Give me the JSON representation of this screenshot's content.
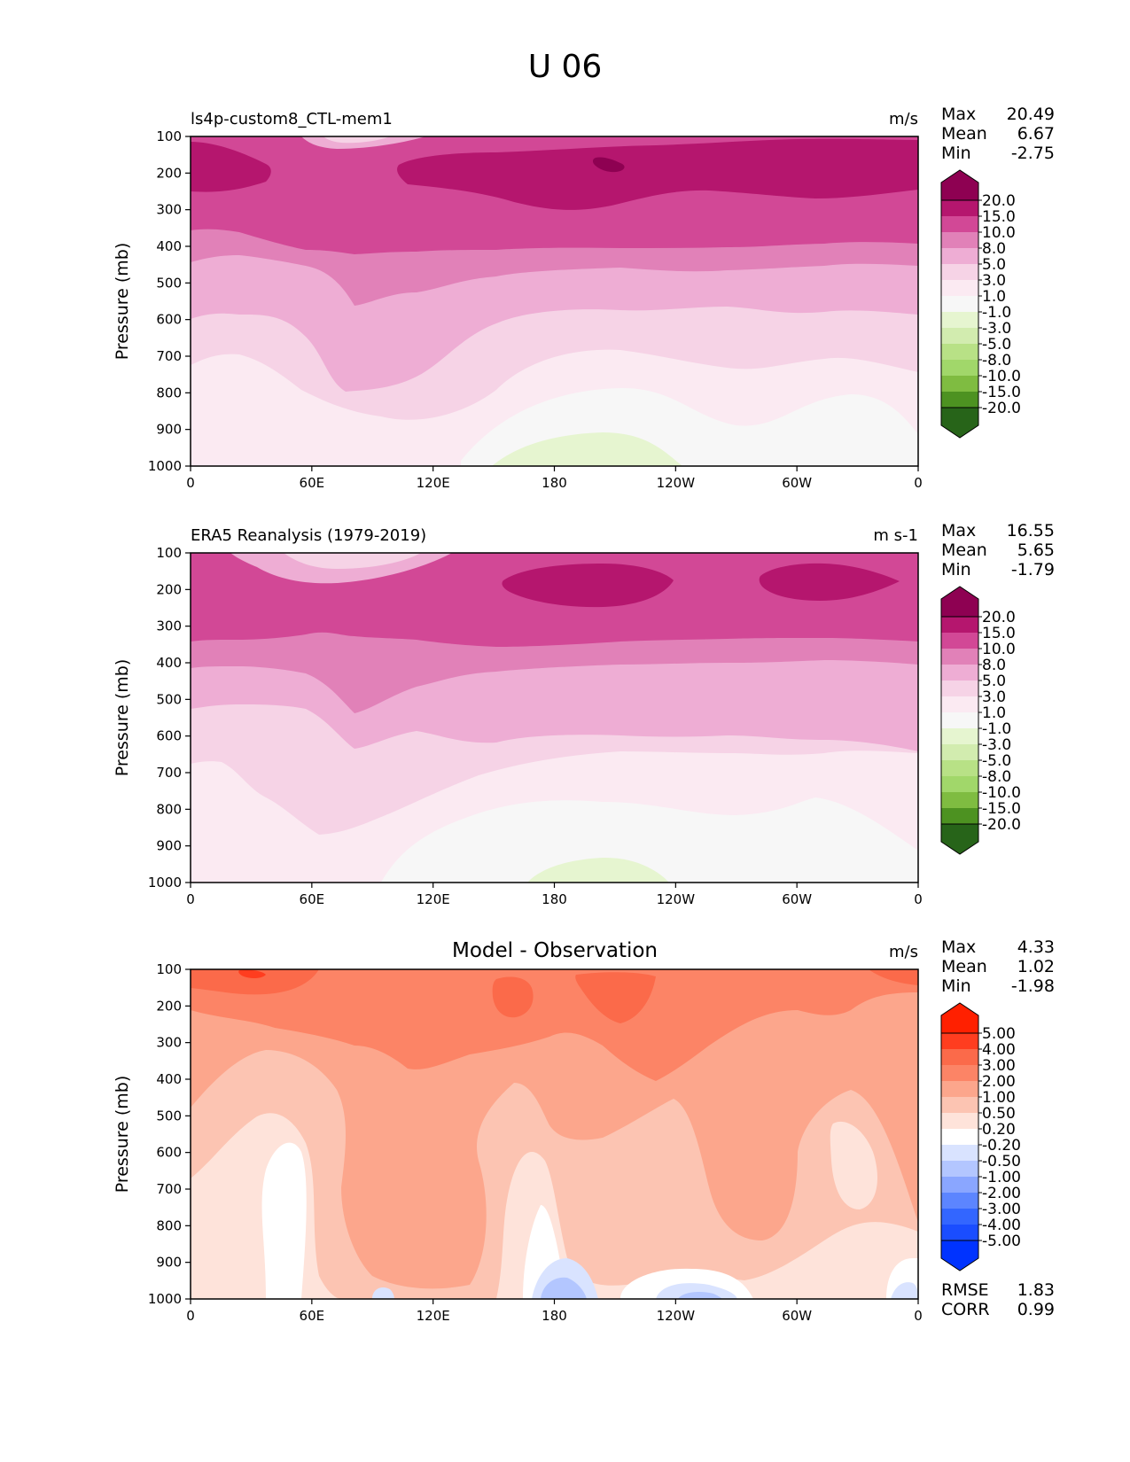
{
  "page": {
    "title": "U 06"
  },
  "colors": {
    "wind": [
      "#276419",
      "#4d9221",
      "#7fbc41",
      "#a1d76a",
      "#b8e186",
      "#d2ecaf",
      "#e6f5d0",
      "#f7f7f7",
      "#fbeaf2",
      "#f6d3e6",
      "#eeadd4",
      "#e181b8",
      "#d24896",
      "#b5166e",
      "#8e0152"
    ],
    "diff": [
      "#0033ff",
      "#1a4dff",
      "#3366ff",
      "#5c85ff",
      "#8aa6ff",
      "#b3c6ff",
      "#d9e3ff",
      "#ffffff",
      "#fee3da",
      "#fcc4b2",
      "#fca68c",
      "#fc8466",
      "#fb6a4a",
      "#ff3d1f",
      "#ff2000"
    ]
  },
  "panels": [
    {
      "id": "model",
      "left_title": "ls4p-custom8_CTL-mem1",
      "center_title": "",
      "units": "m/s",
      "stats": {
        "max_label": "Max",
        "max": "20.49",
        "mean_label": "Mean",
        "mean": "6.67",
        "min_label": "Min",
        "min": "-2.75"
      },
      "colorbar_labels": [
        "20.0",
        "15.0",
        "10.0",
        "8.0",
        "5.0",
        "3.0",
        "1.0",
        "-1.0",
        "-3.0",
        "-5.0",
        "-8.0",
        "-10.0",
        "-15.0",
        "-20.0"
      ]
    },
    {
      "id": "obs",
      "left_title": "ERA5 Reanalysis (1979-2019)",
      "center_title": "",
      "units": "m s-1",
      "stats": {
        "max_label": "Max",
        "max": "16.55",
        "mean_label": "Mean",
        "mean": "5.65",
        "min_label": "Min",
        "min": "-1.79"
      },
      "colorbar_labels": [
        "20.0",
        "15.0",
        "10.0",
        "8.0",
        "5.0",
        "3.0",
        "1.0",
        "-1.0",
        "-3.0",
        "-5.0",
        "-8.0",
        "-10.0",
        "-15.0",
        "-20.0"
      ]
    },
    {
      "id": "diff",
      "left_title": "",
      "center_title": "Model - Observation",
      "units": "m/s",
      "stats": {
        "max_label": "Max",
        "max": "4.33",
        "mean_label": "Mean",
        "mean": "1.02",
        "min_label": "Min",
        "min": "-1.98"
      },
      "colorbar_labels": [
        "5.00",
        "4.00",
        "3.00",
        "2.00",
        "1.00",
        "0.50",
        "0.20",
        "-0.20",
        "-0.50",
        "-1.00",
        "-2.00",
        "-3.00",
        "-4.00",
        "-5.00"
      ],
      "extra_stats": [
        {
          "label": "RMSE",
          "value": "1.83"
        },
        {
          "label": "CORR",
          "value": "0.99"
        }
      ]
    }
  ],
  "chart_data": [
    {
      "type": "heatmap",
      "title": "ls4p-custom8_CTL-mem1",
      "units": "m/s",
      "ylabel": "Pressure (mb)",
      "xlabel": "",
      "y_ticks": [
        "100",
        "200",
        "300",
        "400",
        "500",
        "600",
        "700",
        "800",
        "900",
        "1000"
      ],
      "x_ticks": [
        "0",
        "60E",
        "120E",
        "180",
        "120W",
        "60W",
        "0"
      ],
      "ylim": [
        1000,
        100
      ],
      "xlim": [
        0,
        360
      ],
      "levels": [
        -20,
        -15,
        -10,
        -8,
        -5,
        -3,
        -1,
        1,
        3,
        5,
        8,
        10,
        15,
        20
      ],
      "profile_pressure": [
        100,
        150,
        200,
        250,
        300,
        350,
        400,
        450,
        500,
        600,
        700,
        800,
        900,
        1000
      ],
      "profile_u": [
        11,
        17,
        17.5,
        16,
        12,
        11.5,
        9.5,
        7,
        5,
        3.5,
        2,
        0.5,
        0,
        -0.5
      ],
      "max": 20.49,
      "mean": 6.67,
      "min": -2.75
    },
    {
      "type": "heatmap",
      "title": "ERA5 Reanalysis (1979-2019)",
      "units": "m s-1",
      "ylabel": "Pressure (mb)",
      "xlabel": "",
      "y_ticks": [
        "100",
        "200",
        "300",
        "400",
        "500",
        "600",
        "700",
        "800",
        "900",
        "1000"
      ],
      "x_ticks": [
        "0",
        "60E",
        "120E",
        "180",
        "120W",
        "60W",
        "0"
      ],
      "ylim": [
        1000,
        100
      ],
      "xlim": [
        0,
        360
      ],
      "levels": [
        -20,
        -15,
        -10,
        -8,
        -5,
        -3,
        -1,
        1,
        3,
        5,
        8,
        10,
        15,
        20
      ],
      "profile_pressure": [
        100,
        150,
        200,
        250,
        300,
        350,
        400,
        450,
        500,
        600,
        700,
        800,
        900,
        1000
      ],
      "profile_u": [
        9,
        13,
        13.5,
        12.5,
        11,
        10,
        8.5,
        6,
        5,
        3.5,
        2,
        1,
        0,
        -0.5
      ],
      "max": 16.55,
      "mean": 5.65,
      "min": -1.79
    },
    {
      "type": "heatmap",
      "title": "Model - Observation",
      "units": "m/s",
      "ylabel": "Pressure (mb)",
      "xlabel": "",
      "y_ticks": [
        "100",
        "200",
        "300",
        "400",
        "500",
        "600",
        "700",
        "800",
        "900",
        "1000"
      ],
      "x_ticks": [
        "0",
        "60E",
        "120E",
        "180",
        "120W",
        "60W",
        "0"
      ],
      "ylim": [
        1000,
        100
      ],
      "xlim": [
        0,
        360
      ],
      "levels": [
        -5,
        -4,
        -3,
        -2,
        -1,
        -0.5,
        -0.2,
        0.2,
        0.5,
        1,
        2,
        3,
        4,
        5
      ],
      "profile_pressure": [
        100,
        150,
        200,
        250,
        300,
        400,
        500,
        600,
        700,
        800,
        900,
        1000
      ],
      "profile_u": [
        3.2,
        2.6,
        2.2,
        1.8,
        1.5,
        1.2,
        0.9,
        0.7,
        0.6,
        0.5,
        0.2,
        -0.6
      ],
      "max": 4.33,
      "mean": 1.02,
      "min": -1.98,
      "rmse": 1.83,
      "corr": 0.99
    }
  ]
}
